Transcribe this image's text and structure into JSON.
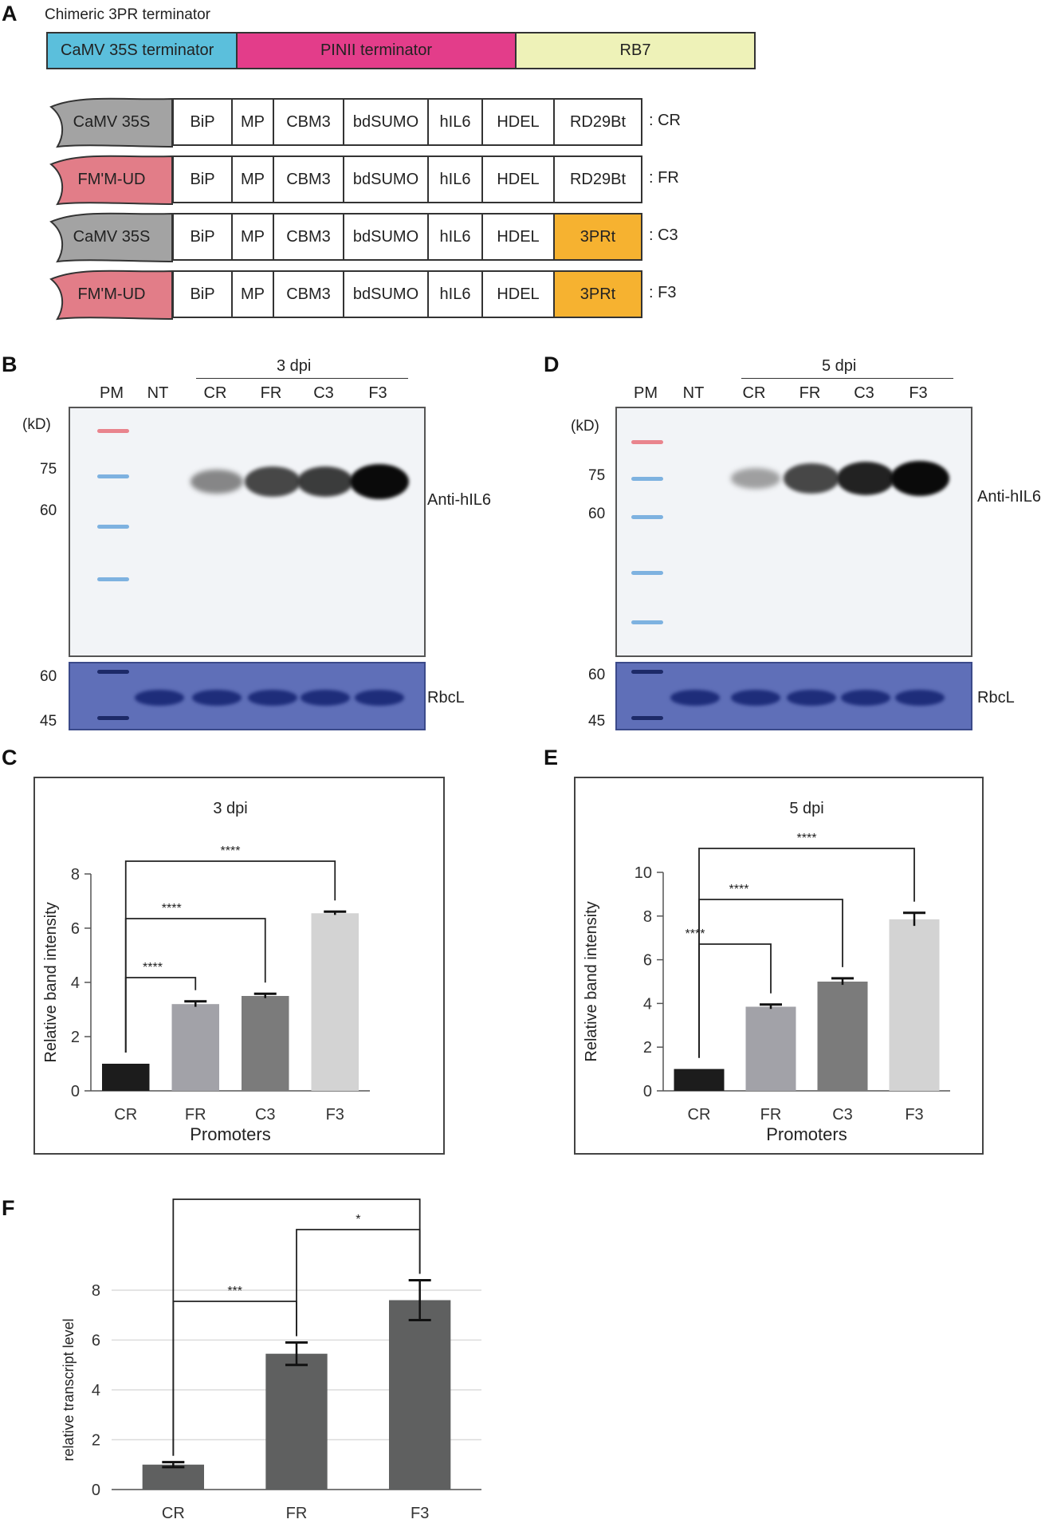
{
  "panels": {
    "A": "A",
    "B": "B",
    "C": "C",
    "D": "D",
    "E": "E",
    "F": "F"
  },
  "panelA": {
    "title": "Chimeric 3PR terminator",
    "segments": [
      {
        "label": "CaMV 35S terminator",
        "color": "#5bbfdc"
      },
      {
        "label": "PINII  terminator",
        "color": "#e33d8a"
      },
      {
        "label": "RB7",
        "color": "#eef2b8"
      }
    ],
    "constructs": [
      {
        "promoter": "CaMV 35S",
        "promoter_color": "#a3a3a3",
        "elements": [
          "BiP",
          "MP",
          "CBM3",
          "bdSUMO",
          "hIL6",
          "HDEL",
          "RD29Bt"
        ],
        "terminator_highlight": false,
        "name": ": CR"
      },
      {
        "promoter": "FM'M-UD",
        "promoter_color": "#e27d88",
        "elements": [
          "BiP",
          "MP",
          "CBM3",
          "bdSUMO",
          "hIL6",
          "HDEL",
          "RD29Bt"
        ],
        "terminator_highlight": false,
        "name": ": FR"
      },
      {
        "promoter": "CaMV 35S",
        "promoter_color": "#a3a3a3",
        "elements": [
          "BiP",
          "MP",
          "CBM3",
          "bdSUMO",
          "hIL6",
          "HDEL",
          "3PRt"
        ],
        "terminator_highlight": true,
        "name": ": C3"
      },
      {
        "promoter": "FM'M-UD",
        "promoter_color": "#e27d88",
        "elements": [
          "BiP",
          "MP",
          "CBM3",
          "bdSUMO",
          "hIL6",
          "HDEL",
          "3PRt"
        ],
        "terminator_highlight": true,
        "name": ": F3"
      }
    ]
  },
  "panelB": {
    "dpi": "3 dpi",
    "lanes": [
      "PM",
      "NT",
      "CR",
      "FR",
      "C3",
      "F3"
    ],
    "kd": "(kD)",
    "mw_top": [
      "75",
      "60"
    ],
    "mw_bottom": [
      "60",
      "45"
    ],
    "antibody": "Anti-hIL6",
    "loading": "RbcL",
    "band_intensity": [
      0,
      0,
      0.45,
      0.75,
      0.8,
      1.0
    ]
  },
  "panelD": {
    "dpi": "5 dpi",
    "lanes": [
      "PM",
      "NT",
      "CR",
      "FR",
      "C3",
      "F3"
    ],
    "kd": "(kD)",
    "mw_top": [
      "75",
      "60"
    ],
    "mw_bottom": [
      "60",
      "45"
    ],
    "antibody": "Anti-hIL6",
    "loading": "RbcL",
    "band_intensity": [
      0,
      0,
      0.3,
      0.75,
      0.9,
      1.0
    ]
  },
  "chart_data": [
    {
      "panel": "C",
      "type": "bar",
      "title": "3 dpi",
      "categories": [
        "CR",
        "FR",
        "C3",
        "F3"
      ],
      "values": [
        1.0,
        3.2,
        3.5,
        6.55
      ],
      "errors": [
        0,
        0.1,
        0.08,
        0.06
      ],
      "colors": [
        "#1c1c1c",
        "#a2a2a8",
        "#7b7b7b",
        "#d3d3d3"
      ],
      "xlabel": "Promoters",
      "ylabel": "Relative band intensity",
      "ylim": [
        0,
        8
      ],
      "yticks": [
        "0",
        "2",
        "4",
        "6",
        "8"
      ],
      "significance": [
        {
          "from": "CR",
          "to": "FR",
          "label": "****"
        },
        {
          "from": "CR",
          "to": "C3",
          "label": "****"
        },
        {
          "from": "CR",
          "to": "F3",
          "label": "****"
        }
      ]
    },
    {
      "panel": "E",
      "type": "bar",
      "title": "5 dpi",
      "categories": [
        "CR",
        "FR",
        "C3",
        "F3"
      ],
      "values": [
        1.0,
        3.85,
        5.0,
        7.85
      ],
      "errors": [
        0,
        0.1,
        0.15,
        0.3
      ],
      "colors": [
        "#1c1c1c",
        "#a2a2a8",
        "#7b7b7b",
        "#d3d3d3"
      ],
      "xlabel": "Promoters",
      "ylabel": "Relative band intensity",
      "ylim": [
        0,
        10
      ],
      "yticks": [
        "0",
        "2",
        "4",
        "6",
        "8",
        "10"
      ],
      "significance": [
        {
          "from": "CR",
          "to": "FR",
          "label": "****"
        },
        {
          "from": "CR",
          "to": "C3",
          "label": "****"
        },
        {
          "from": "CR",
          "to": "F3",
          "label": "****"
        }
      ]
    },
    {
      "panel": "F",
      "type": "bar",
      "title": "",
      "categories": [
        "CR",
        "FR",
        "F3"
      ],
      "values": [
        1.0,
        5.45,
        7.6
      ],
      "errors": [
        0.1,
        0.45,
        0.8
      ],
      "colors": [
        "#5f6060",
        "#5f6060",
        "#5f6060"
      ],
      "xlabel": "",
      "ylabel": "relative transcript level",
      "ylim": [
        0,
        8
      ],
      "yticks": [
        "0",
        "2",
        "4",
        "6",
        "8"
      ],
      "grid": true,
      "significance": [
        {
          "from": "CR",
          "to": "FR",
          "label": "***"
        },
        {
          "from": "FR",
          "to": "F3",
          "label": "*"
        },
        {
          "from": "CR",
          "to": "F3",
          "label": "**"
        }
      ]
    }
  ]
}
